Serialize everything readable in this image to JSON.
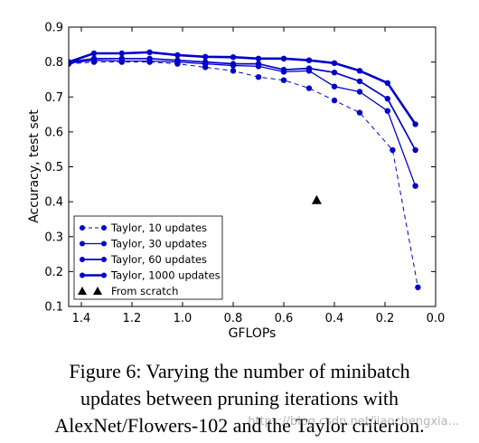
{
  "chart_data": {
    "type": "line",
    "xlabel": "GFLOPs",
    "ylabel": "Accuracy, test set",
    "xlim": [
      1.45,
      0.0
    ],
    "ylim": [
      0.1,
      0.9
    ],
    "x_reversed": true,
    "xticks": [
      "1.4",
      "1.2",
      "1.0",
      "0.8",
      "0.6",
      "0.4",
      "0.2",
      "0.0"
    ],
    "xtick_values": [
      1.4,
      1.2,
      1.0,
      0.8,
      0.6,
      0.4,
      0.2,
      0.0
    ],
    "yticks": [
      "0.1",
      "0.2",
      "0.3",
      "0.4",
      "0.5",
      "0.6",
      "0.7",
      "0.8",
      "0.9"
    ],
    "ytick_values": [
      0.1,
      0.2,
      0.3,
      0.4,
      0.5,
      0.6,
      0.7,
      0.8,
      0.9
    ],
    "grid": false,
    "legend_position": "lower-left",
    "color": "#0000cc",
    "series": [
      {
        "name": "Taylor, 10 updates",
        "style": "dashed",
        "width": 1,
        "x": [
          1.45,
          1.35,
          1.24,
          1.13,
          1.02,
          0.91,
          0.8,
          0.7,
          0.6,
          0.5,
          0.4,
          0.3,
          0.17,
          0.07
        ],
        "y": [
          0.795,
          0.8,
          0.8,
          0.8,
          0.795,
          0.785,
          0.775,
          0.757,
          0.748,
          0.725,
          0.69,
          0.655,
          0.548,
          0.155
        ]
      },
      {
        "name": "Taylor, 30 updates",
        "style": "solid",
        "width": 1.3,
        "x": [
          1.45,
          1.35,
          1.24,
          1.13,
          1.02,
          0.91,
          0.8,
          0.7,
          0.6,
          0.5,
          0.4,
          0.3,
          0.19,
          0.08
        ],
        "y": [
          0.797,
          0.805,
          0.803,
          0.803,
          0.8,
          0.795,
          0.79,
          0.788,
          0.772,
          0.775,
          0.73,
          0.715,
          0.66,
          0.445
        ]
      },
      {
        "name": "Taylor, 60 updates",
        "style": "solid",
        "width": 1.7,
        "x": [
          1.45,
          1.35,
          1.24,
          1.13,
          1.02,
          0.91,
          0.8,
          0.7,
          0.6,
          0.5,
          0.4,
          0.3,
          0.19,
          0.08
        ],
        "y": [
          0.8,
          0.81,
          0.81,
          0.81,
          0.805,
          0.8,
          0.795,
          0.795,
          0.778,
          0.782,
          0.77,
          0.745,
          0.695,
          0.548
        ]
      },
      {
        "name": "Taylor, 1000 updates",
        "style": "solid",
        "width": 2.6,
        "x": [
          1.45,
          1.35,
          1.24,
          1.13,
          1.02,
          0.91,
          0.8,
          0.7,
          0.6,
          0.5,
          0.4,
          0.3,
          0.19,
          0.08
        ],
        "y": [
          0.8,
          0.825,
          0.825,
          0.828,
          0.82,
          0.815,
          0.814,
          0.81,
          0.81,
          0.805,
          0.797,
          0.775,
          0.74,
          0.622
        ]
      }
    ],
    "scratch": {
      "name": "From scratch",
      "marker": "triangle",
      "x": [
        0.47
      ],
      "y": [
        0.405
      ]
    }
  },
  "caption": {
    "lines": [
      "Figure 6: Varying the number of minibatch",
      "updates between pruning iterations with",
      "AlexNet/Flowers-102 and the Taylor criterion."
    ]
  },
  "watermark": "https://blog.csdn.net/jiaochengxia..."
}
